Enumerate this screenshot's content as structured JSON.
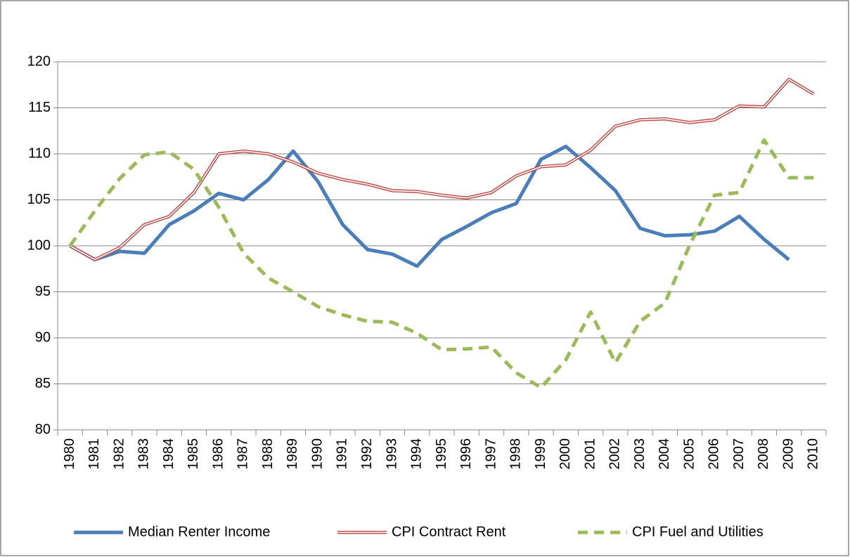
{
  "chart_data": {
    "type": "line",
    "categories": [
      "1980",
      "1981",
      "1982",
      "1983",
      "1984",
      "1985",
      "1986",
      "1987",
      "1988",
      "1989",
      "1990",
      "1991",
      "1992",
      "1993",
      "1994",
      "1995",
      "1996",
      "1997",
      "1998",
      "1999",
      "2000",
      "2001",
      "2002",
      "2003",
      "2004",
      "2005",
      "2006",
      "2007",
      "2008",
      "2009",
      "2010"
    ],
    "series": [
      {
        "name": "Median Renter Income",
        "color": "#4a7ebb",
        "style": "solid",
        "values": [
          100,
          98.5,
          99.4,
          99.2,
          102.3,
          103.8,
          105.7,
          105.0,
          107.2,
          110.3,
          107.0,
          102.3,
          99.6,
          99.1,
          97.8,
          100.7,
          102.1,
          103.6,
          104.6,
          109.4,
          110.8,
          108.5,
          106.0,
          101.9,
          101.1,
          101.2,
          101.6,
          103.2,
          100.7,
          98.5,
          null
        ]
      },
      {
        "name": "CPI Contract Rent",
        "color": "#be4b48",
        "style": "double",
        "values": [
          100,
          98.5,
          99.8,
          102.3,
          103.2,
          105.8,
          110.0,
          110.3,
          110.0,
          109.1,
          107.9,
          107.2,
          106.7,
          106.0,
          105.9,
          105.5,
          105.2,
          105.8,
          107.6,
          108.6,
          108.8,
          110.4,
          113.0,
          113.7,
          113.8,
          113.4,
          113.7,
          115.2,
          115.1,
          118.1,
          116.5
        ]
      },
      {
        "name": "CPI Fuel and Utilities",
        "color": "#9bbb59",
        "style": "dashed",
        "values": [
          100,
          103.8,
          107.3,
          109.9,
          110.2,
          108.3,
          104.2,
          99.2,
          96.5,
          95.0,
          93.4,
          92.5,
          91.8,
          91.7,
          90.5,
          88.7,
          88.8,
          89.0,
          86.2,
          84.6,
          87.6,
          92.8,
          87.3,
          91.8,
          93.8,
          100.1,
          105.5,
          105.8,
          111.5,
          107.4,
          107.4
        ]
      }
    ],
    "ylim": [
      80,
      120
    ],
    "yticks": [
      80,
      85,
      90,
      95,
      100,
      105,
      110,
      115,
      120
    ],
    "grid": true,
    "legend": "bottom"
  }
}
